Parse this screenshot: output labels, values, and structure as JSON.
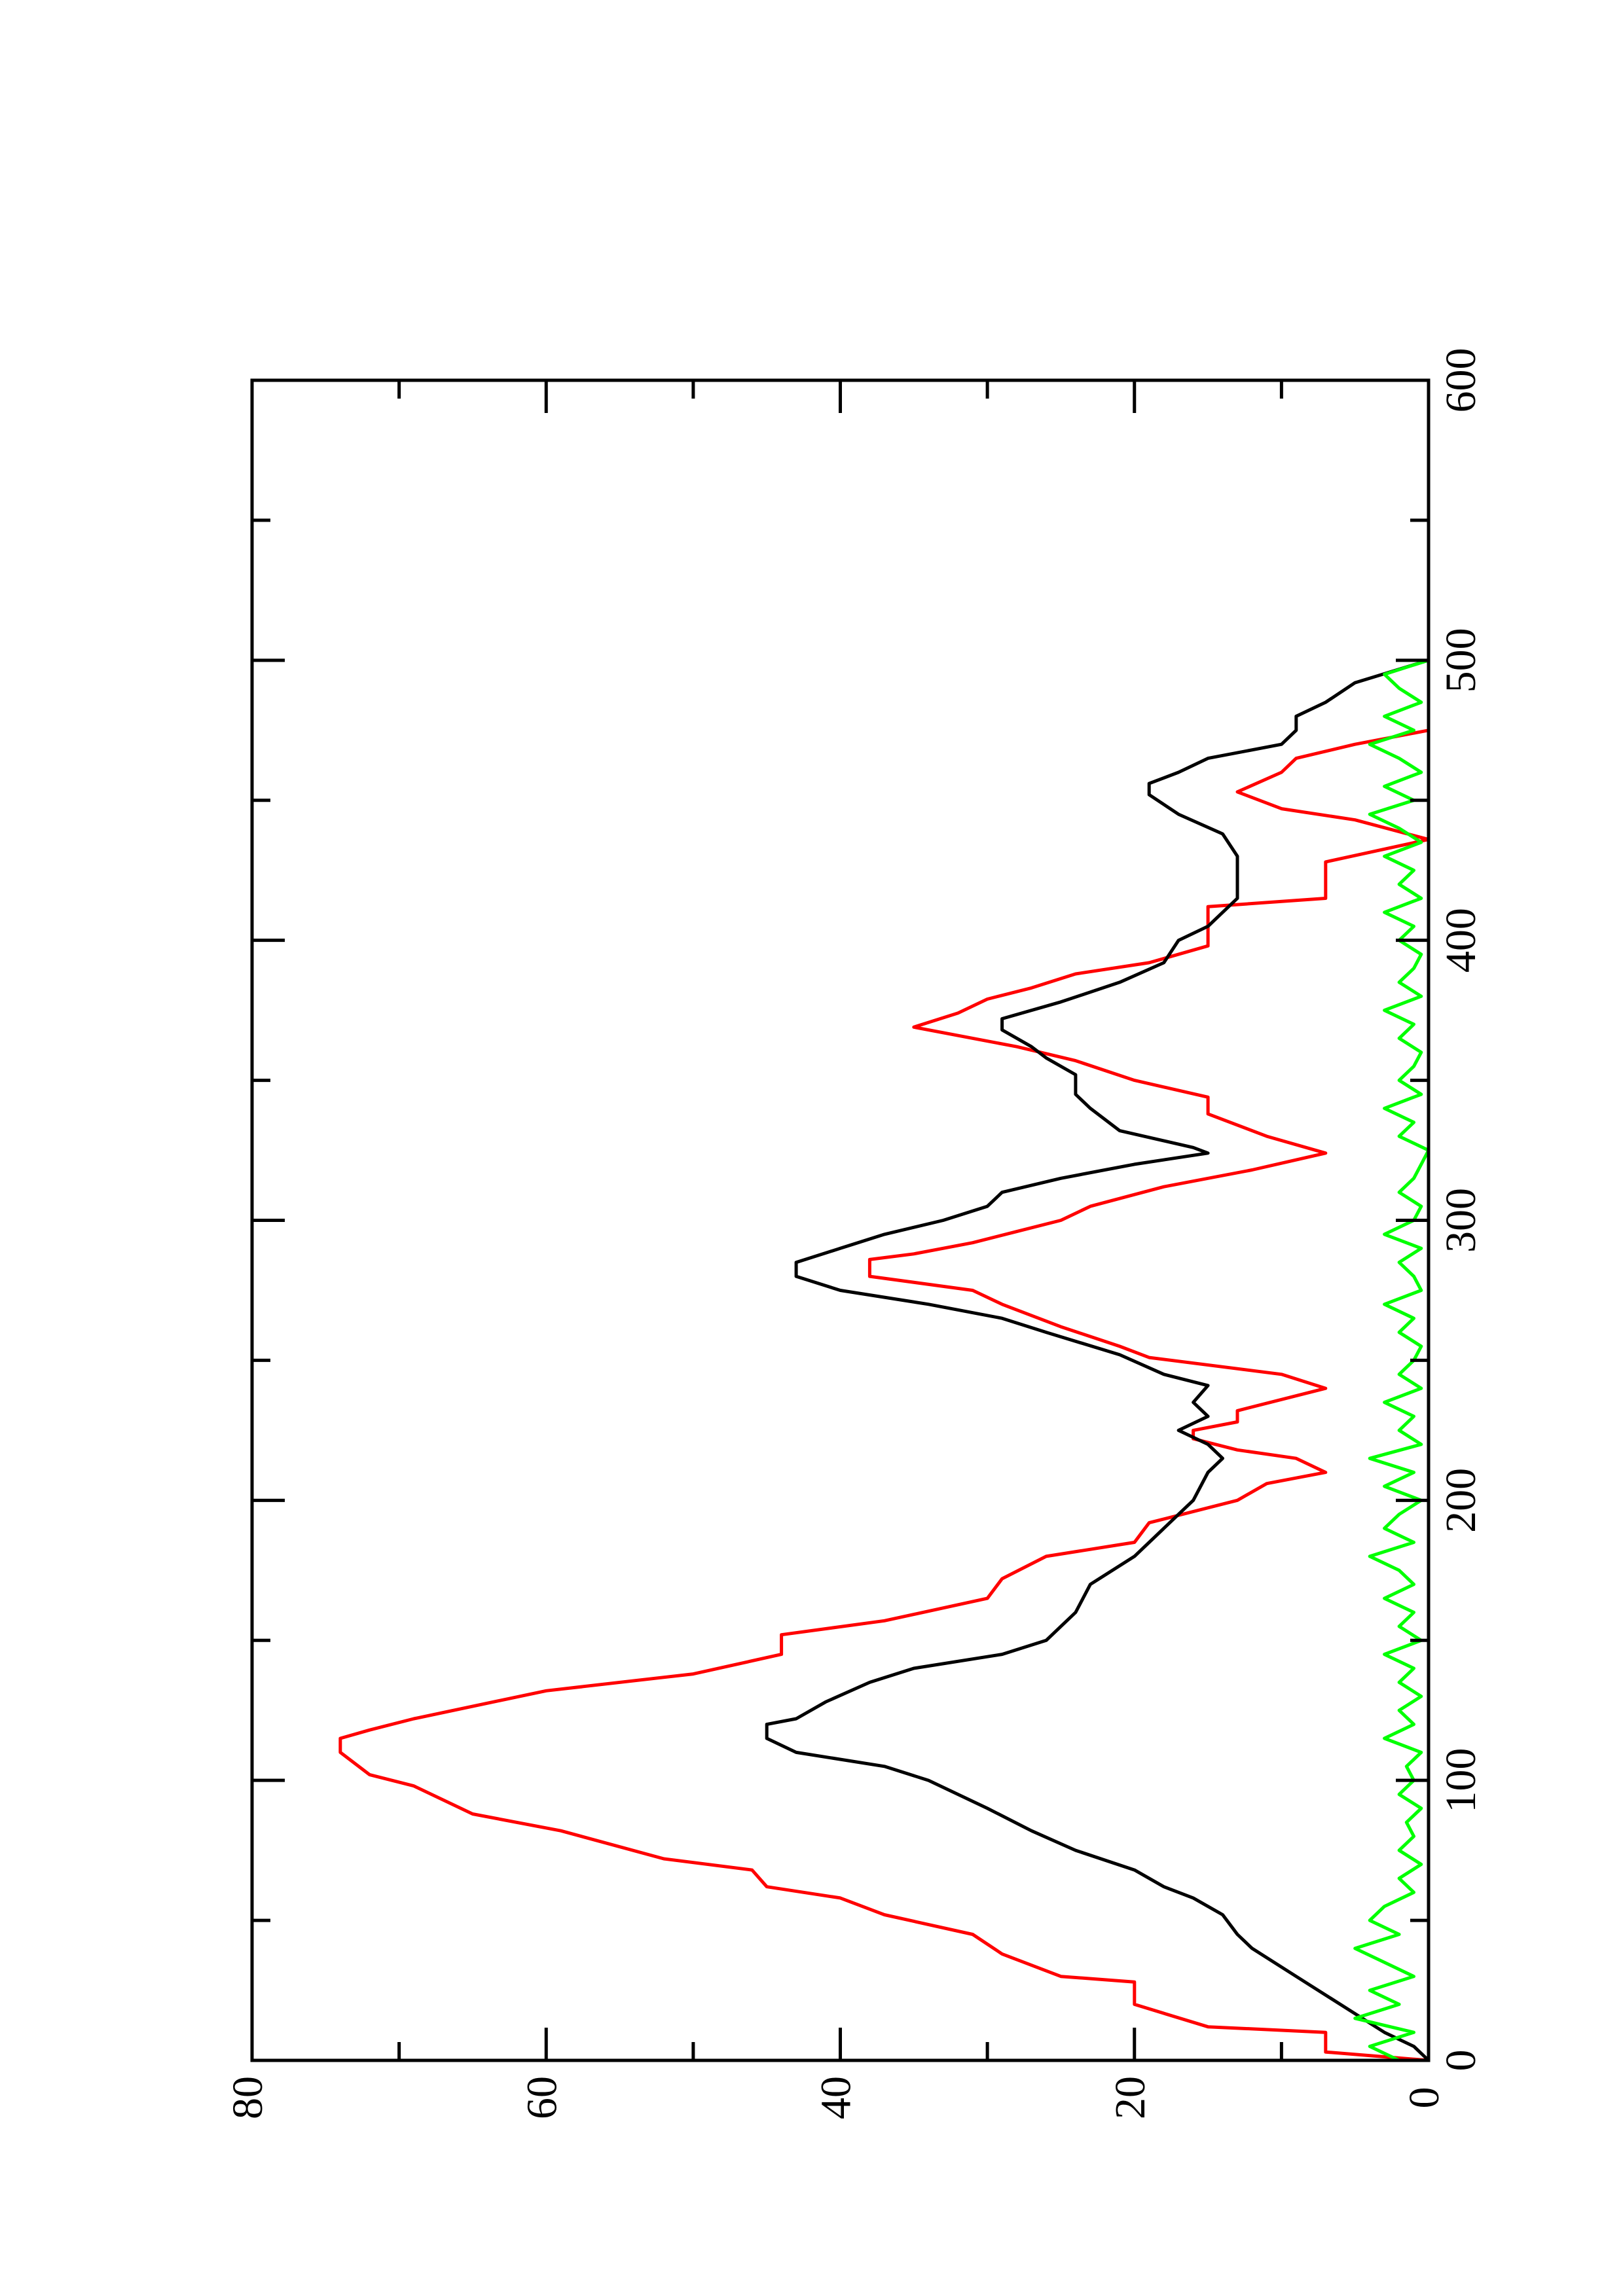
{
  "chart_data": {
    "type": "line",
    "rotated": true,
    "xlim": [
      0,
      600
    ],
    "xticks": [
      0,
      100,
      200,
      300,
      400,
      500,
      600
    ],
    "xminorticks": [
      50,
      150,
      250,
      350,
      450,
      550
    ],
    "ylim": [
      0,
      80
    ],
    "yticks": [
      0,
      20,
      40,
      60,
      80
    ],
    "yminorticks": [
      10,
      30,
      50,
      70
    ],
    "series": [
      {
        "color": "#ff0000",
        "x": [
          0,
          3,
          10,
          12,
          20,
          28,
          30,
          38,
          45,
          52,
          58,
          62,
          68,
          72,
          82,
          88,
          98,
          102,
          110,
          115,
          118,
          122,
          132,
          138,
          145,
          152,
          157,
          165,
          172,
          180,
          185,
          192,
          200,
          206,
          210,
          215,
          218,
          222,
          225,
          228,
          232,
          240,
          245,
          251,
          255,
          262,
          270,
          275,
          280,
          286,
          288,
          292,
          296,
          300,
          305,
          312,
          318,
          324,
          330,
          338,
          344,
          350,
          357,
          362,
          369,
          374,
          379,
          383,
          388,
          392,
          398,
          412,
          415,
          428,
          436,
          443,
          447,
          453,
          460,
          465,
          470,
          475,
          500
        ],
        "values": [
          0,
          7,
          7,
          15,
          20,
          20,
          25,
          29,
          31,
          37,
          40,
          45,
          46,
          52,
          59,
          65,
          69,
          72,
          74,
          74,
          72,
          69,
          60,
          50,
          44,
          44,
          37,
          30,
          29,
          26,
          20,
          19,
          13,
          11,
          7,
          9,
          13,
          16,
          16,
          13,
          13,
          7,
          10,
          19,
          21,
          25,
          29,
          31,
          38,
          38,
          35,
          31,
          28,
          25,
          23,
          18,
          12,
          7,
          11,
          15,
          15,
          20,
          24,
          28,
          35,
          32,
          30,
          27,
          24,
          19,
          15,
          15,
          7,
          7,
          0,
          5,
          10,
          13,
          10,
          9,
          5,
          0,
          0
        ]
      },
      {
        "color": "#000000",
        "x": [
          0,
          5,
          10,
          20,
          30,
          40,
          45,
          52,
          58,
          62,
          68,
          75,
          82,
          90,
          100,
          105,
          110,
          115,
          120,
          122,
          128,
          135,
          140,
          145,
          150,
          155,
          160,
          170,
          180,
          190,
          195,
          200,
          210,
          215,
          220,
          225,
          230,
          235,
          241,
          245,
          252,
          260,
          265,
          270,
          275,
          280,
          285,
          290,
          295,
          300,
          305,
          310,
          315,
          320,
          324,
          326,
          332,
          340,
          345,
          352,
          358,
          362,
          368,
          372,
          378,
          385,
          392,
          400,
          405,
          410,
          415,
          422,
          430,
          438,
          445,
          452,
          456,
          460,
          465,
          470,
          475,
          480,
          485,
          492,
          500
        ],
        "values": [
          0,
          1,
          3,
          6,
          9,
          12,
          13,
          14,
          16,
          18,
          20,
          24,
          27,
          30,
          34,
          37,
          43,
          45,
          45,
          43,
          41,
          38,
          35,
          29,
          26,
          25,
          24,
          23,
          20,
          18,
          17,
          16,
          15,
          14,
          15,
          17,
          15,
          16,
          15,
          18,
          21,
          26,
          29,
          34,
          40,
          43,
          43,
          40,
          37,
          33,
          30,
          29,
          25,
          20,
          15,
          16,
          21,
          23,
          24,
          24,
          26,
          27,
          29,
          29,
          25,
          21,
          18,
          17,
          15,
          14,
          13,
          13,
          13,
          14,
          17,
          19,
          19,
          17,
          15,
          10,
          9,
          9,
          7,
          5,
          0
        ]
      },
      {
        "color": "#00ff00",
        "x": [
          0,
          5,
          10,
          15,
          20,
          25,
          30,
          35,
          40,
          45,
          50,
          55,
          60,
          65,
          70,
          75,
          80,
          85,
          90,
          95,
          100,
          105,
          110,
          115,
          120,
          125,
          130,
          135,
          140,
          145,
          150,
          155,
          160,
          165,
          170,
          175,
          180,
          185,
          190,
          195,
          200,
          205,
          210,
          215,
          220,
          225,
          230,
          235,
          240,
          245,
          250,
          255,
          260,
          265,
          270,
          275,
          280,
          285,
          290,
          295,
          300,
          305,
          310,
          315,
          320,
          325,
          330,
          335,
          340,
          345,
          350,
          355,
          360,
          365,
          370,
          375,
          380,
          385,
          390,
          395,
          400,
          405,
          410,
          415,
          420,
          425,
          430,
          435,
          440,
          445,
          450,
          455,
          460,
          465,
          470,
          475,
          480,
          485,
          490,
          495,
          500
        ],
        "values": [
          2,
          4,
          1,
          5,
          2,
          4,
          1,
          3,
          5,
          2,
          4,
          3,
          1,
          2,
          0.5,
          2,
          1,
          1.5,
          0.5,
          2,
          1,
          1.5,
          0.5,
          3,
          1,
          2,
          0.5,
          2,
          1,
          3,
          0.5,
          2,
          1,
          3,
          1,
          2,
          4,
          1,
          3,
          2,
          0.5,
          3,
          1,
          4,
          0.5,
          2,
          1,
          3,
          0.5,
          2,
          1,
          0.5,
          2,
          1,
          3,
          0.5,
          1,
          2,
          0.5,
          3,
          1,
          0.5,
          2,
          1,
          0.5,
          0,
          2,
          1,
          3,
          0.5,
          2,
          1,
          0.5,
          2,
          1,
          3,
          0.5,
          2,
          1,
          0.5,
          2,
          1,
          3,
          0.5,
          2,
          1,
          3,
          0.5,
          2,
          4,
          1,
          3,
          0.5,
          2,
          4,
          1,
          3,
          0.5,
          2,
          3,
          0
        ]
      }
    ]
  }
}
